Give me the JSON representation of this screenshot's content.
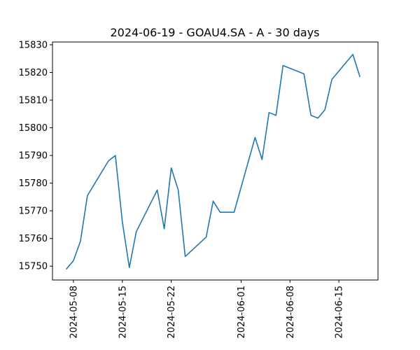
{
  "chart_data": {
    "type": "line",
    "title": "2024-06-19 - GOAU4.SA - A - 30 days",
    "xlabel": "",
    "ylabel": "",
    "x_type": "date",
    "xlim": [
      "2024-05-05",
      "2024-06-20"
    ],
    "ylim": [
      15745,
      15831
    ],
    "grid": false,
    "legend": "none",
    "line_color": "#1f77b4",
    "x_ticks": [
      "2024-05-08",
      "2024-05-15",
      "2024-05-22",
      "2024-06-01",
      "2024-06-08",
      "2024-06-15"
    ],
    "y_ticks": [
      15750,
      15760,
      15770,
      15780,
      15790,
      15800,
      15810,
      15820,
      15830
    ],
    "points": [
      {
        "x": "2024-05-07",
        "y": 15749
      },
      {
        "x": "2024-05-08",
        "y": 15752
      },
      {
        "x": "2024-05-09",
        "y": 15759
      },
      {
        "x": "2024-05-10",
        "y": 15775.5
      },
      {
        "x": "2024-05-13",
        "y": 15788
      },
      {
        "x": "2024-05-14",
        "y": 15790
      },
      {
        "x": "2024-05-15",
        "y": 15766
      },
      {
        "x": "2024-05-16",
        "y": 15749.5
      },
      {
        "x": "2024-05-17",
        "y": 15762.5
      },
      {
        "x": "2024-05-20",
        "y": 15777.5
      },
      {
        "x": "2024-05-21",
        "y": 15763.5
      },
      {
        "x": "2024-05-22",
        "y": 15785.5
      },
      {
        "x": "2024-05-23",
        "y": 15777.5
      },
      {
        "x": "2024-05-24",
        "y": 15753.5
      },
      {
        "x": "2024-05-27",
        "y": 15760.5
      },
      {
        "x": "2024-05-28",
        "y": 15773.5
      },
      {
        "x": "2024-05-29",
        "y": 15769.5
      },
      {
        "x": "2024-05-31",
        "y": 15769.5
      },
      {
        "x": "2024-06-03",
        "y": 15796.5
      },
      {
        "x": "2024-06-04",
        "y": 15788.5
      },
      {
        "x": "2024-06-05",
        "y": 15805.5
      },
      {
        "x": "2024-06-06",
        "y": 15804.5
      },
      {
        "x": "2024-06-07",
        "y": 15822.5
      },
      {
        "x": "2024-06-10",
        "y": 15819.5
      },
      {
        "x": "2024-06-11",
        "y": 15804.5
      },
      {
        "x": "2024-06-12",
        "y": 15803.5
      },
      {
        "x": "2024-06-13",
        "y": 15806.5
      },
      {
        "x": "2024-06-14",
        "y": 15817.5
      },
      {
        "x": "2024-06-17",
        "y": 15826.5
      },
      {
        "x": "2024-06-18",
        "y": 15818.5
      }
    ]
  }
}
